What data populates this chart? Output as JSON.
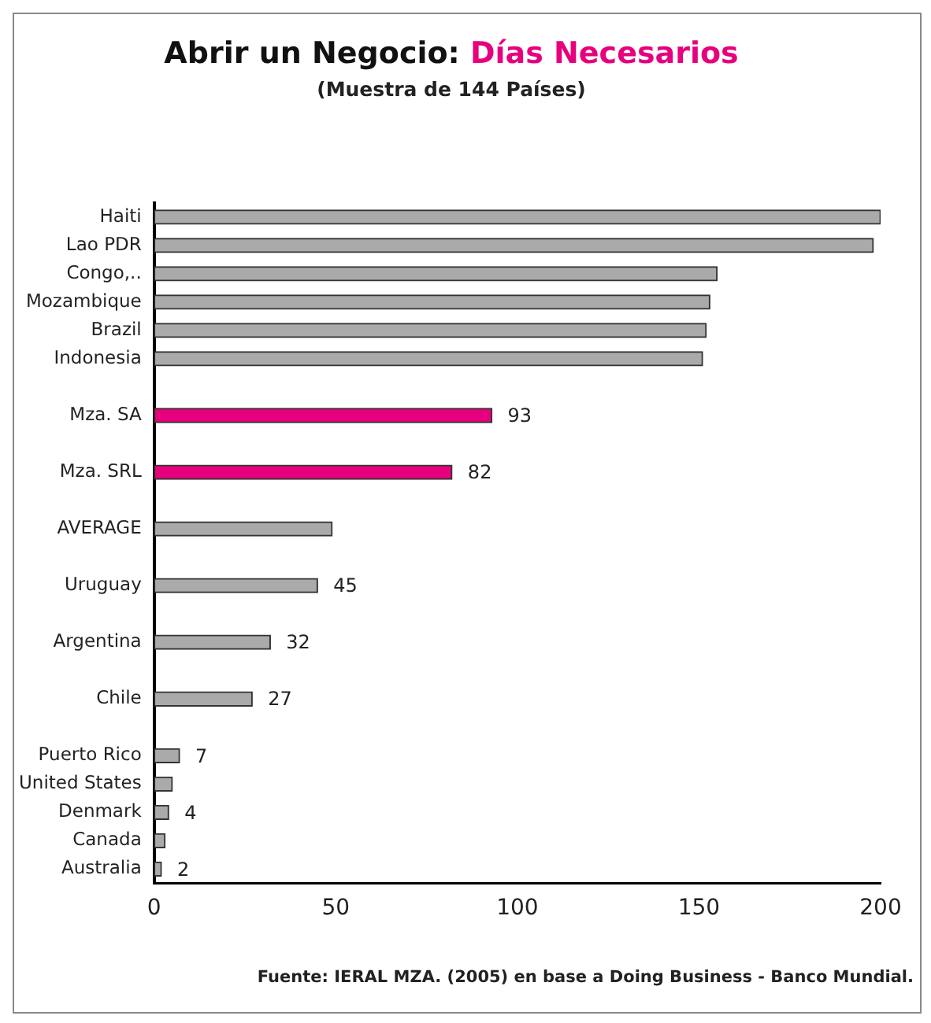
{
  "chart_data": {
    "type": "bar",
    "orientation": "horizontal",
    "title": "Abrir un Negocio: Días Necesarios",
    "subtitle": "(Muestra de 144 Países)",
    "categories": [
      "Haiti",
      "Lao PDR",
      "Congo,..",
      "Mozambique",
      "Brazil",
      "Indonesia",
      null,
      "Mza. SA",
      null,
      "Mza. SRL",
      null,
      "AVERAGE",
      null,
      "Uruguay",
      null,
      "Argentina",
      null,
      "Chile",
      null,
      "Puerto Rico",
      "United States",
      "Denmark",
      "Canada",
      "Australia"
    ],
    "values": [
      200,
      198,
      155,
      153,
      152,
      151,
      null,
      93,
      null,
      82,
      null,
      49,
      null,
      45,
      null,
      32,
      null,
      27,
      null,
      7,
      5,
      4,
      3,
      2
    ],
    "colors": [
      "#aaaaaa",
      "#aaaaaa",
      "#aaaaaa",
      "#aaaaaa",
      "#aaaaaa",
      "#aaaaaa",
      "#aaaaaa",
      "#e6007e",
      "#aaaaaa",
      "#e6007e",
      "#aaaaaa",
      "#aaaaaa",
      "#aaaaaa",
      "#aaaaaa",
      "#aaaaaa",
      "#aaaaaa",
      "#aaaaaa",
      "#aaaaaa",
      "#aaaaaa",
      "#aaaaaa",
      "#aaaaaa",
      "#aaaaaa",
      "#aaaaaa",
      "#aaaaaa"
    ],
    "value_labels": [
      null,
      null,
      null,
      null,
      null,
      null,
      null,
      "93",
      null,
      "82",
      null,
      null,
      null,
      "45",
      null,
      "32",
      null,
      "27",
      null,
      "7",
      null,
      "4",
      null,
      "2"
    ],
    "xlim": [
      0,
      200
    ],
    "xticks": [
      0,
      50,
      100,
      150,
      200
    ],
    "grid": false,
    "legend": false,
    "annotations": [
      "Fuente: IERAL MZA. (2005) en base a Doing Business - Banco Mundial."
    ]
  }
}
